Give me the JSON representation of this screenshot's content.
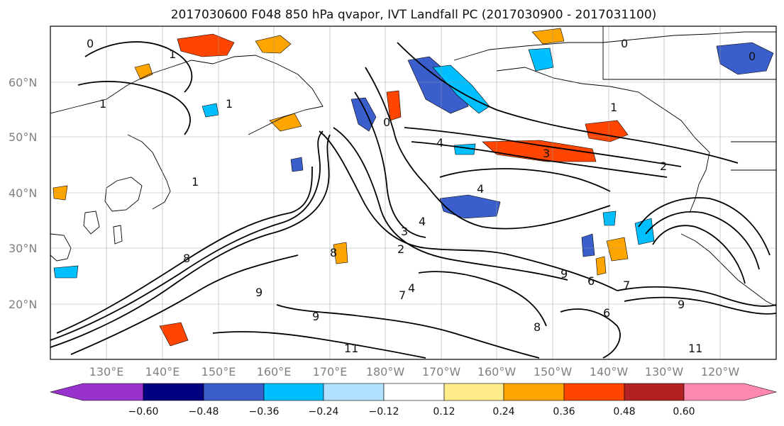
{
  "title": "2017030600 F048 850 hPa qvapor, IVT Landfall PC (2017030900 - 2017031100)",
  "lon_labels": [
    "130°E",
    "140°E",
    "150°E",
    "160°E",
    "170°E",
    "180°W",
    "170°W",
    "160°W",
    "150°W",
    "140°W",
    "130°W",
    "120°W"
  ],
  "lat_labels": [
    "60°N",
    "50°N",
    "40°N",
    "30°N",
    "20°N"
  ],
  "colorbar": {
    "tick_labels": [
      "−0.60",
      "−0.48",
      "−0.36",
      "−0.24",
      "−0.12",
      "0.12",
      "0.24",
      "0.36",
      "0.48",
      "0.60"
    ],
    "colors": [
      "#9932cc",
      "#000080",
      "#3a5fcd",
      "#00bfff",
      "#b0e2ff",
      "#ffffff",
      "#ffec8b",
      "#ffa500",
      "#ff4500",
      "#b22222",
      "#ff88b0"
    ]
  },
  "contour_labels": [
    "0",
    "0",
    "0",
    "1",
    "1",
    "1",
    "1",
    "1",
    "0",
    "2",
    "2",
    "3",
    "3",
    "4",
    "4",
    "4",
    "4",
    "6",
    "6",
    "7",
    "7",
    "8",
    "8",
    "8",
    "9",
    "9",
    "9",
    "9",
    "11",
    "11"
  ]
}
